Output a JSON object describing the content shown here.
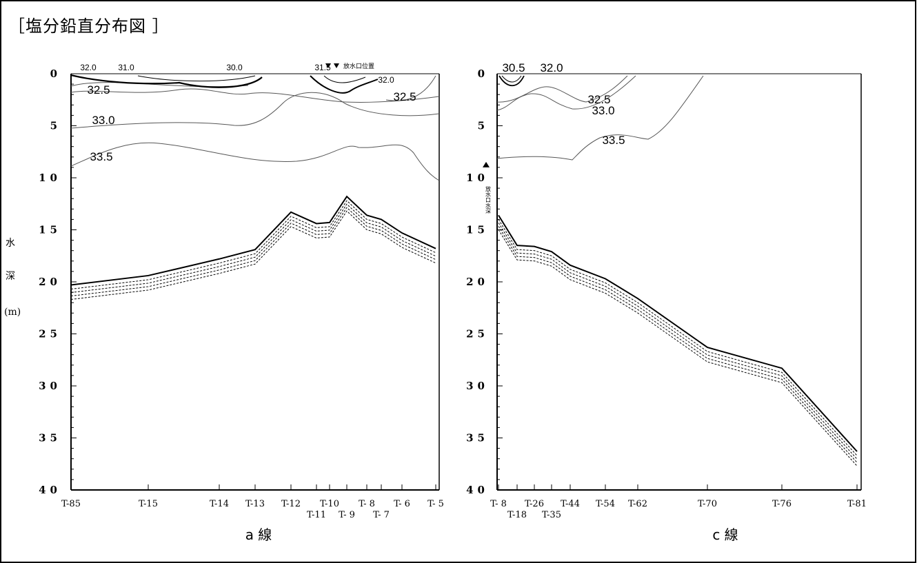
{
  "heading": "［塩分鉛直分布図 ］",
  "y_axis_label": {
    "line1": "水",
    "line2": "深",
    "line3": "(m)"
  },
  "outlet_legend": "▼▼ 放水口位置",
  "outlet_depth_label": "放水口水深",
  "chart_data": [
    {
      "type": "line",
      "panel_label": "a 線",
      "y_ticks": [
        "0",
        "5",
        "10",
        "15",
        "20",
        "25",
        "30",
        "35",
        "40"
      ],
      "ylim": [
        0,
        40
      ],
      "y_inverted": true,
      "stations_top": [
        "T-85",
        "T-15",
        "T-14",
        "T-13",
        "T-12",
        "T-10",
        "T- 8",
        "T- 6",
        "T- 5"
      ],
      "stations_bottom": [
        "T-11",
        "T- 9",
        "T- 7"
      ],
      "station_order": [
        "T-85",
        "T-15",
        "T-14",
        "T-13",
        "T-12",
        "T-11",
        "T-10",
        "T- 9",
        "T- 8",
        "T- 7",
        "T- 6",
        "T- 5"
      ],
      "bottom_depth_m": [
        20.3,
        19.4,
        17.8,
        16.9,
        13.3,
        14.4,
        14.3,
        11.8,
        13.6,
        14.0,
        15.3,
        16.8
      ],
      "contour_labels": [
        {
          "label": "32.0",
          "value": 32.0
        },
        {
          "label": "31.0",
          "value": 31.0
        },
        {
          "label": "30.0",
          "value": 30.0
        },
        {
          "label": "31.5",
          "value": 31.5
        },
        {
          "label": "32.0",
          "value": 32.0
        },
        {
          "label": "32.5",
          "value": 32.5
        },
        {
          "label": "32.5",
          "value": 32.5
        },
        {
          "label": "33.0",
          "value": 33.0
        },
        {
          "label": "33.5",
          "value": 33.5
        }
      ],
      "outlet_stations": [
        "T-10",
        "T- 9"
      ]
    },
    {
      "type": "line",
      "panel_label": "c 線",
      "y_ticks": [
        "0",
        "5",
        "10",
        "15",
        "20",
        "25",
        "30",
        "35",
        "40"
      ],
      "ylim": [
        0,
        40
      ],
      "y_inverted": true,
      "stations_top": [
        "T- 8",
        "T-26",
        "T-44",
        "T-54",
        "T-62",
        "T-70",
        "T-76",
        "T-81"
      ],
      "stations_bottom": [
        "T-18",
        "T-35"
      ],
      "station_order": [
        "T- 8",
        "T-18",
        "T-26",
        "T-35",
        "T-44",
        "T-54",
        "T-62",
        "T-70",
        "T-76",
        "T-81"
      ],
      "bottom_depth_m": [
        13.6,
        16.5,
        16.6,
        17.1,
        18.4,
        19.7,
        21.6,
        26.3,
        28.3,
        36.3
      ],
      "contour_labels": [
        {
          "label": "30.5",
          "value": 30.5
        },
        {
          "label": "32.0",
          "value": 32.0
        },
        {
          "label": "32.5",
          "value": 32.5
        },
        {
          "label": "33.0",
          "value": 33.0
        },
        {
          "label": "33.5",
          "value": 33.5
        }
      ],
      "outlet_depth_m": 8.8
    }
  ]
}
